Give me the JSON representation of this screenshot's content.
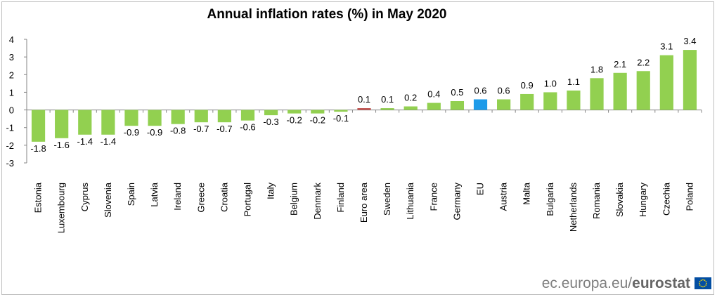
{
  "chart_data": {
    "type": "bar",
    "title": "Annual inflation rates (%) in May 2020",
    "xlabel": "",
    "ylabel": "",
    "ylim": [
      -3,
      4
    ],
    "yticks": [
      "4",
      "3",
      "2",
      "1",
      "0",
      "-1",
      "-2",
      "-3"
    ],
    "yticks_values": [
      4,
      3,
      2,
      1,
      0,
      -1,
      -2,
      -3
    ],
    "grid": false,
    "categories": [
      "Estonia",
      "Luxembourg",
      "Cyprus",
      "Slovenia",
      "Spain",
      "Latvia",
      "Ireland",
      "Greece",
      "Croatia",
      "Portugal",
      "Italy",
      "Belgium",
      "Denmark",
      "Finland",
      "Euro area",
      "Sweden",
      "Lithuania",
      "France",
      "Germany",
      "EU",
      "Austria",
      "Malta",
      "Bulgaria",
      "Netherlands",
      "Romania",
      "Slovakia",
      "Hungary",
      "Czechia",
      "Poland"
    ],
    "values": [
      -1.8,
      -1.6,
      -1.4,
      -1.4,
      -0.9,
      -0.9,
      -0.8,
      -0.7,
      -0.7,
      -0.6,
      -0.3,
      -0.2,
      -0.2,
      -0.1,
      0.1,
      0.1,
      0.2,
      0.4,
      0.5,
      0.6,
      0.6,
      0.9,
      1.0,
      1.1,
      1.8,
      2.1,
      2.2,
      3.1,
      3.4
    ],
    "value_labels": [
      "-1.8",
      "-1.6",
      "-1.4",
      "-1.4",
      "-0.9",
      "-0.9",
      "-0.8",
      "-0.7",
      "-0.7",
      "-0.6",
      "-0.3",
      "-0.2",
      "-0.2",
      "-0.1",
      "0.1",
      "0.1",
      "0.2",
      "0.4",
      "0.5",
      "0.6",
      "0.6",
      "0.9",
      "1.0",
      "1.1",
      "1.8",
      "2.1",
      "2.2",
      "3.1",
      "3.4"
    ],
    "colors": {
      "default": "#92d050",
      "Euro area": "#c0504d",
      "EU": "#1e9be9"
    }
  },
  "source": {
    "prefix": "ec.europa.eu/",
    "brand": "eurostat"
  },
  "logo": {
    "flag_color": "#034ea2",
    "star_color": "#ffdd00"
  }
}
